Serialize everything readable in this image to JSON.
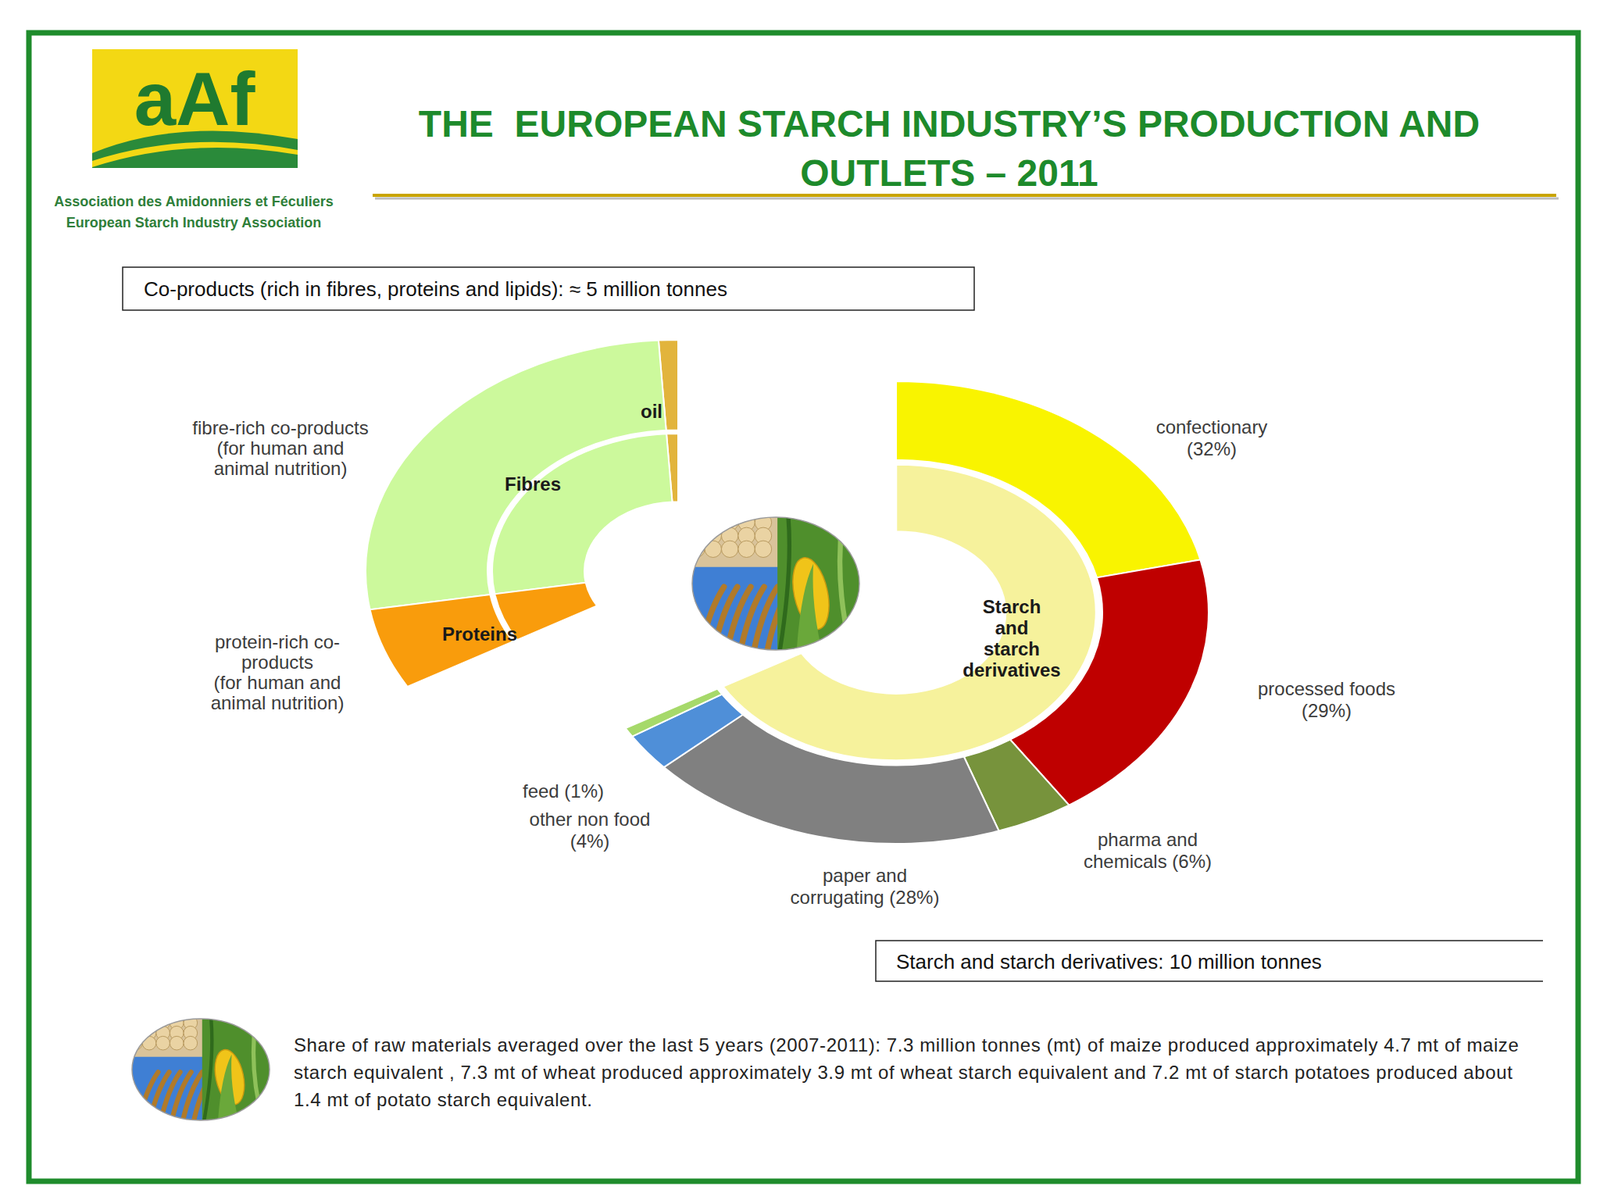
{
  "header": {
    "logo": "aAf",
    "association_lines": [
      "Association des Amidonniers et Féculiers",
      "European Starch Industry Association"
    ],
    "title": "THE  EUROPEAN STARCH INDUSTRY’S PRODUCTION AND OUTLETS – 2011"
  },
  "chart_data": [
    {
      "type": "donut",
      "total": {
        "prefix": "Co-products (rich in fibres, proteins and lipids): ≈",
        "value": 5,
        "unit": "million tonnes"
      },
      "categories": [
        "oil",
        "Fibres",
        "Proteins"
      ],
      "values": [
        3,
        80,
        17
      ],
      "colors": [
        "#e2b43c",
        "#ccf99c",
        "#f99c0c"
      ],
      "outer_labels": [
        null,
        "fibre-rich co-products (for human and animal nutrition)",
        "protein-rich co-products (for human and animal nutrition)"
      ]
    },
    {
      "type": "donut",
      "total": {
        "prefix": "Starch and starch derivatives:",
        "value": 10,
        "unit": "million tonnes"
      },
      "inner_ring": {
        "label": "Starch and starch derivatives",
        "color": "#f6f29c"
      },
      "categories": [
        "confectionary",
        "processed foods",
        "pharma and chemicals",
        "paper and corrugating",
        "other non food",
        "feed"
      ],
      "values": [
        32,
        29,
        6,
        28,
        4,
        1
      ],
      "value_labels": [
        "(32%)",
        "(29%)",
        "(6%)",
        "(28%)",
        "(4%)",
        "(1%)"
      ],
      "data_labels": true,
      "colors": [
        "#f9f400",
        "#bf0000",
        "#77933c",
        "#808080",
        "#4f8fd8",
        "#a6d96a"
      ]
    }
  ],
  "footnote": "Share of raw materials averaged over the last 5 years (2007-2011): 7.3 million tonnes (mt) of maize produced approximately 4.7 mt of maize starch equivalent , 7.3 mt of wheat produced approximately 3.9 mt of wheat starch equivalent and 7.2 mt of starch potatoes produced about 1.4 mt of potato starch equivalent."
}
